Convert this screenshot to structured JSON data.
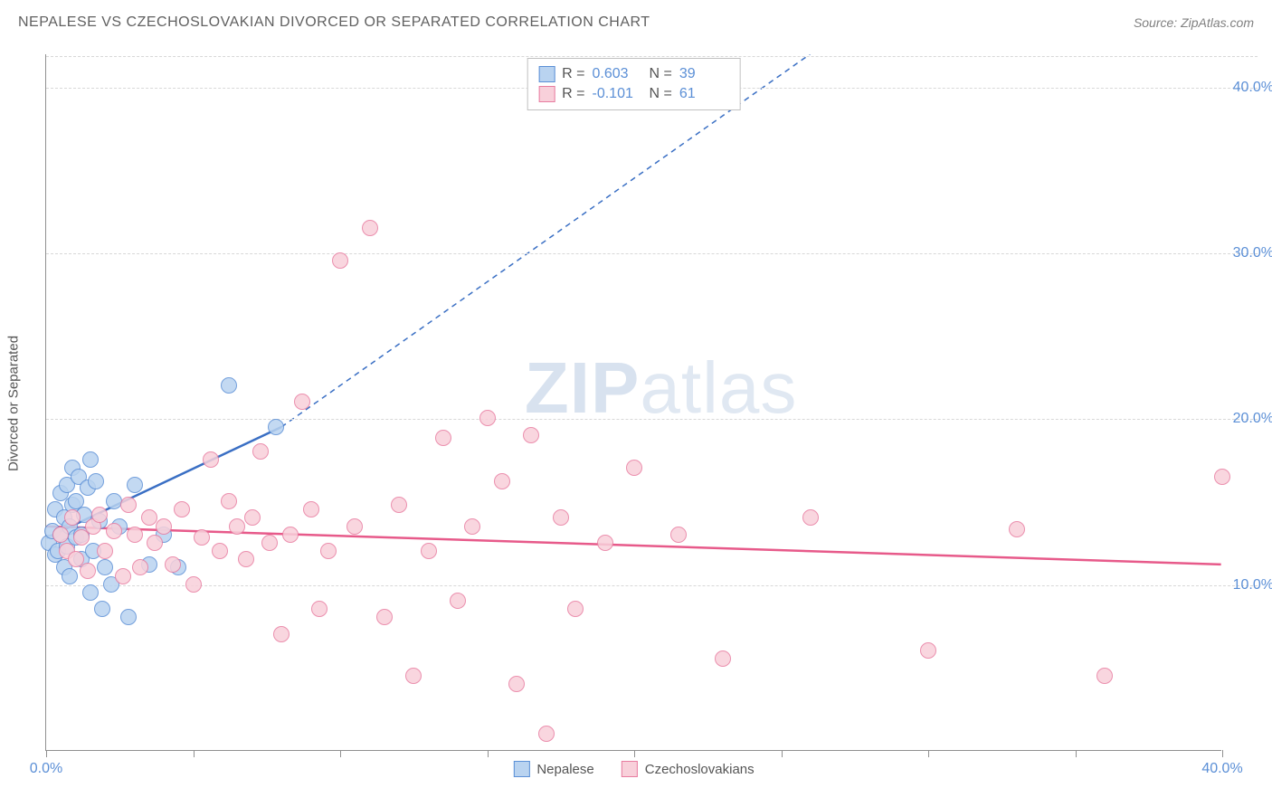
{
  "header": {
    "title": "NEPALESE VS CZECHOSLOVAKIAN DIVORCED OR SEPARATED CORRELATION CHART",
    "source": "Source: ZipAtlas.com"
  },
  "chart": {
    "type": "scatter",
    "ylabel": "Divorced or Separated",
    "xlim": [
      0,
      40
    ],
    "ylim": [
      0,
      42
    ],
    "xticks": [
      0,
      5,
      10,
      15,
      20,
      25,
      30,
      35,
      40
    ],
    "xtick_labels": {
      "0": "0.0%",
      "40": "40.0%"
    },
    "yticks": [
      10,
      20,
      30,
      40
    ],
    "ytick_labels": [
      "10.0%",
      "20.0%",
      "30.0%",
      "40.0%"
    ],
    "grid_color": "#d8d8d8",
    "axis_color": "#909090",
    "tick_label_color": "#5b8fd6",
    "background_color": "#ffffff",
    "marker_radius": 9,
    "series": [
      {
        "name": "Nepalese",
        "fill": "#b9d3f0",
        "stroke": "#5b8fd6",
        "R": "0.603",
        "N": "39",
        "trend": {
          "x1": 0,
          "y1": 12.8,
          "x2": 8.0,
          "y2": 19.5,
          "color": "#3a6fc4",
          "width": 2.5,
          "ext_x2": 26.0,
          "ext_y2": 42.0,
          "dash": "6,5"
        },
        "points": [
          [
            0.1,
            12.5
          ],
          [
            0.2,
            13.2
          ],
          [
            0.3,
            11.8
          ],
          [
            0.3,
            14.5
          ],
          [
            0.4,
            12.0
          ],
          [
            0.5,
            13.0
          ],
          [
            0.5,
            15.5
          ],
          [
            0.6,
            11.0
          ],
          [
            0.6,
            14.0
          ],
          [
            0.7,
            12.3
          ],
          [
            0.7,
            16.0
          ],
          [
            0.8,
            13.5
          ],
          [
            0.8,
            10.5
          ],
          [
            0.9,
            14.8
          ],
          [
            0.9,
            17.0
          ],
          [
            1.0,
            12.8
          ],
          [
            1.0,
            15.0
          ],
          [
            1.1,
            16.5
          ],
          [
            1.2,
            13.0
          ],
          [
            1.2,
            11.5
          ],
          [
            1.3,
            14.2
          ],
          [
            1.4,
            15.8
          ],
          [
            1.5,
            17.5
          ],
          [
            1.5,
            9.5
          ],
          [
            1.6,
            12.0
          ],
          [
            1.7,
            16.2
          ],
          [
            1.8,
            13.8
          ],
          [
            1.9,
            8.5
          ],
          [
            2.0,
            11.0
          ],
          [
            2.2,
            10.0
          ],
          [
            2.3,
            15.0
          ],
          [
            2.5,
            13.5
          ],
          [
            2.8,
            8.0
          ],
          [
            3.0,
            16.0
          ],
          [
            3.5,
            11.2
          ],
          [
            4.0,
            13.0
          ],
          [
            4.5,
            11.0
          ],
          [
            6.2,
            22.0
          ],
          [
            7.8,
            19.5
          ]
        ]
      },
      {
        "name": "Czechoslovakians",
        "fill": "#f8d0da",
        "stroke": "#e87ca0",
        "R": "-0.101",
        "N": "61",
        "trend": {
          "x1": 0,
          "y1": 13.5,
          "x2": 40,
          "y2": 11.2,
          "color": "#e75a8a",
          "width": 2.5
        },
        "points": [
          [
            0.5,
            13.0
          ],
          [
            0.7,
            12.0
          ],
          [
            0.9,
            14.0
          ],
          [
            1.0,
            11.5
          ],
          [
            1.2,
            12.8
          ],
          [
            1.4,
            10.8
          ],
          [
            1.6,
            13.5
          ],
          [
            1.8,
            14.2
          ],
          [
            2.0,
            12.0
          ],
          [
            2.3,
            13.2
          ],
          [
            2.6,
            10.5
          ],
          [
            2.8,
            14.8
          ],
          [
            3.0,
            13.0
          ],
          [
            3.2,
            11.0
          ],
          [
            3.5,
            14.0
          ],
          [
            3.7,
            12.5
          ],
          [
            4.0,
            13.5
          ],
          [
            4.3,
            11.2
          ],
          [
            4.6,
            14.5
          ],
          [
            5.0,
            10.0
          ],
          [
            5.3,
            12.8
          ],
          [
            5.6,
            17.5
          ],
          [
            5.9,
            12.0
          ],
          [
            6.2,
            15.0
          ],
          [
            6.5,
            13.5
          ],
          [
            6.8,
            11.5
          ],
          [
            7.0,
            14.0
          ],
          [
            7.3,
            18.0
          ],
          [
            7.6,
            12.5
          ],
          [
            8.0,
            7.0
          ],
          [
            8.3,
            13.0
          ],
          [
            8.7,
            21.0
          ],
          [
            9.0,
            14.5
          ],
          [
            9.3,
            8.5
          ],
          [
            9.6,
            12.0
          ],
          [
            10.0,
            29.5
          ],
          [
            10.5,
            13.5
          ],
          [
            11.0,
            31.5
          ],
          [
            11.5,
            8.0
          ],
          [
            12.0,
            14.8
          ],
          [
            12.5,
            4.5
          ],
          [
            13.0,
            12.0
          ],
          [
            13.5,
            18.8
          ],
          [
            14.0,
            9.0
          ],
          [
            14.5,
            13.5
          ],
          [
            15.0,
            20.0
          ],
          [
            15.5,
            16.2
          ],
          [
            16.0,
            4.0
          ],
          [
            16.5,
            19.0
          ],
          [
            17.0,
            1.0
          ],
          [
            17.5,
            14.0
          ],
          [
            18.0,
            8.5
          ],
          [
            19.0,
            12.5
          ],
          [
            20.0,
            17.0
          ],
          [
            21.5,
            13.0
          ],
          [
            23.0,
            5.5
          ],
          [
            26.0,
            14.0
          ],
          [
            30.0,
            6.0
          ],
          [
            33.0,
            13.3
          ],
          [
            36.0,
            4.5
          ],
          [
            40.0,
            16.5
          ]
        ]
      }
    ],
    "legend_bottom": [
      {
        "label": "Nepalese",
        "fill": "#b9d3f0",
        "stroke": "#5b8fd6"
      },
      {
        "label": "Czechoslovakians",
        "fill": "#f8d0da",
        "stroke": "#e87ca0"
      }
    ],
    "watermark": {
      "bold": "ZIP",
      "rest": "atlas"
    }
  }
}
